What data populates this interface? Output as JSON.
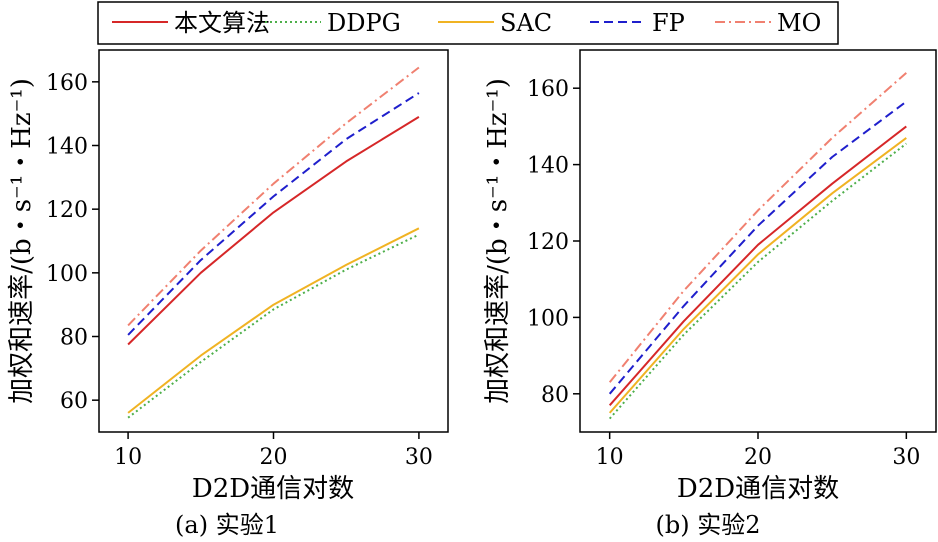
{
  "legend": [
    {
      "name": "本文算法",
      "color": "#d62728",
      "dash": ""
    },
    {
      "name": "DDPG",
      "color": "#4daf4a",
      "dash": "2,3"
    },
    {
      "name": "SAC",
      "color": "#f0b323",
      "dash": ""
    },
    {
      "name": "FP",
      "color": "#1f1fcc",
      "dash": "9,5"
    },
    {
      "name": "MO",
      "color": "#f08070",
      "dash": "10,4,2,4"
    }
  ],
  "chart_data": [
    {
      "type": "line",
      "caption": "(a) 实验1",
      "xlabel": "D2D通信对数",
      "ylabel": "加权和速率/(b・s⁻¹・Hz⁻¹)",
      "x": [
        10,
        15,
        20,
        25,
        30
      ],
      "xticks": [
        10,
        20,
        30
      ],
      "yticks": [
        60,
        80,
        100,
        120,
        140,
        160
      ],
      "xlim": [
        8,
        32
      ],
      "ylim": [
        50,
        170
      ],
      "series": [
        {
          "name": "本文算法",
          "values": [
            77.5,
            100,
            119,
            135,
            149
          ]
        },
        {
          "name": "DDPG",
          "values": [
            54.5,
            72,
            88.5,
            101,
            112
          ]
        },
        {
          "name": "SAC",
          "values": [
            56,
            74,
            90,
            102.5,
            114
          ]
        },
        {
          "name": "FP",
          "values": [
            80.5,
            104,
            124,
            142,
            156.5
          ]
        },
        {
          "name": "MO",
          "values": [
            83.5,
            107,
            128,
            147,
            164.5
          ]
        }
      ]
    },
    {
      "type": "line",
      "caption": "(b) 实验2",
      "xlabel": "D2D通信对数",
      "ylabel": "加权和速率/(b・s⁻¹・Hz⁻¹)",
      "x": [
        10,
        15,
        20,
        25,
        30
      ],
      "xticks": [
        10,
        20,
        30
      ],
      "yticks": [
        80,
        100,
        120,
        140,
        160
      ],
      "xlim": [
        8,
        32
      ],
      "ylim": [
        70,
        170
      ],
      "series": [
        {
          "name": "本文算法",
          "values": [
            77,
            99,
            119,
            135,
            150
          ]
        },
        {
          "name": "DDPG",
          "values": [
            73.5,
            95.5,
            114.5,
            130.5,
            145.5
          ]
        },
        {
          "name": "SAC",
          "values": [
            75,
            97,
            116.5,
            132.5,
            147
          ]
        },
        {
          "name": "FP",
          "values": [
            80,
            103,
            124,
            142,
            156.5
          ]
        },
        {
          "name": "MO",
          "values": [
            83,
            107,
            128,
            147,
            164
          ]
        }
      ]
    }
  ]
}
